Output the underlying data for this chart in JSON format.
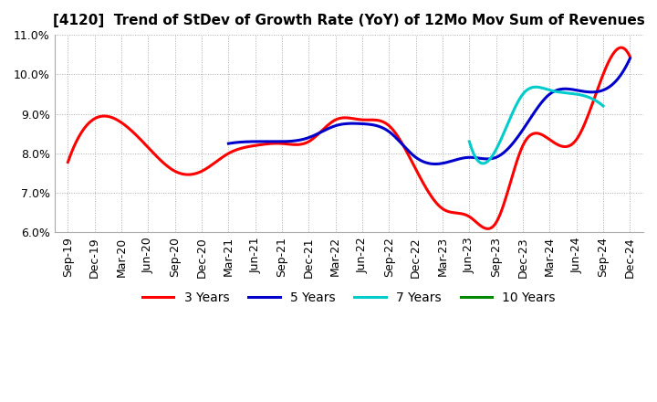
{
  "title": "[4120]  Trend of StDev of Growth Rate (YoY) of 12Mo Mov Sum of Revenues",
  "title_fontsize": 11,
  "ylim": [
    0.06,
    0.11
  ],
  "yticks": [
    0.06,
    0.07,
    0.08,
    0.09,
    0.1,
    0.11
  ],
  "background_color": "#ffffff",
  "grid_color": "#aaaaaa",
  "legend_labels": [
    "3 Years",
    "5 Years",
    "7 Years",
    "10 Years"
  ],
  "legend_colors": [
    "#ff0000",
    "#0000cc",
    "#00cccc",
    "#008800"
  ],
  "x_labels": [
    "Sep-19",
    "Dec-19",
    "Mar-20",
    "Jun-20",
    "Sep-20",
    "Dec-20",
    "Mar-21",
    "Jun-21",
    "Sep-21",
    "Dec-21",
    "Mar-22",
    "Jun-22",
    "Sep-22",
    "Dec-22",
    "Mar-23",
    "Jun-23",
    "Sep-23",
    "Dec-23",
    "Mar-24",
    "Jun-24",
    "Sep-24",
    "Dec-24"
  ],
  "series_3y": [
    0.0778,
    0.0888,
    0.0878,
    0.0815,
    0.0755,
    0.0755,
    0.08,
    0.082,
    0.0825,
    0.083,
    0.0885,
    0.0885,
    0.087,
    0.076,
    0.066,
    0.064,
    0.0625,
    0.082,
    0.0835,
    0.0835,
    0.1,
    0.1045
  ],
  "series_5y": [
    null,
    null,
    null,
    null,
    null,
    null,
    0.0825,
    0.083,
    0.083,
    0.084,
    0.087,
    0.0875,
    0.0855,
    0.079,
    0.0775,
    0.079,
    0.079,
    0.086,
    0.095,
    0.096,
    0.096,
    0.104
  ],
  "series_7y": [
    null,
    null,
    null,
    null,
    null,
    null,
    null,
    null,
    null,
    null,
    null,
    null,
    null,
    null,
    null,
    0.083,
    0.081,
    0.095,
    0.096,
    0.095,
    0.092,
    null
  ],
  "series_10y": [
    null,
    null,
    null,
    null,
    null,
    null,
    null,
    null,
    null,
    null,
    null,
    null,
    null,
    null,
    null,
    null,
    null,
    null,
    null,
    null,
    null,
    null
  ]
}
